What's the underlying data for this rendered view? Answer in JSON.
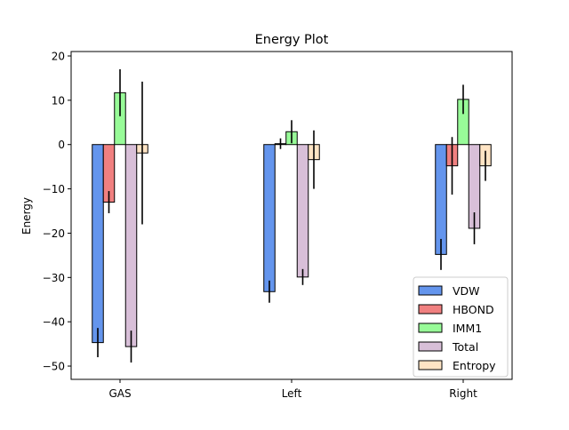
{
  "chart_data": {
    "type": "bar",
    "title": "Energy Plot",
    "xlabel": "",
    "ylabel": "Energy",
    "ylim": [
      -53,
      21
    ],
    "yticks": [
      20,
      10,
      0,
      -10,
      -20,
      -30,
      -40,
      -50
    ],
    "ytick_labels": [
      "20",
      "10",
      "0",
      "−10",
      "−20",
      "−30",
      "−40",
      "−50"
    ],
    "categories": [
      "GAS",
      "Left",
      "Right"
    ],
    "grid": false,
    "legend_position": "lower-right",
    "series": [
      {
        "name": "VDW",
        "color": "#6495ED",
        "values": [
          -44.7,
          -33.2,
          -24.8
        ],
        "errors": [
          3.3,
          2.5,
          3.5
        ]
      },
      {
        "name": "HBOND",
        "color": "#F08080",
        "values": [
          -13.0,
          0.2,
          -4.8
        ],
        "errors": [
          2.5,
          1.2,
          6.5
        ]
      },
      {
        "name": "IMM1",
        "color": "#98FB98",
        "values": [
          11.7,
          2.9,
          10.2
        ],
        "errors": [
          5.3,
          2.6,
          3.3
        ]
      },
      {
        "name": "Total",
        "color": "#D8BFD8",
        "values": [
          -45.6,
          -29.9,
          -18.9
        ],
        "errors": [
          3.6,
          1.8,
          3.6
        ]
      },
      {
        "name": "Entropy",
        "color": "#FFE4C4",
        "values": [
          -1.9,
          -3.4,
          -4.8
        ],
        "errors": [
          16.1,
          6.6,
          3.4
        ]
      }
    ]
  }
}
